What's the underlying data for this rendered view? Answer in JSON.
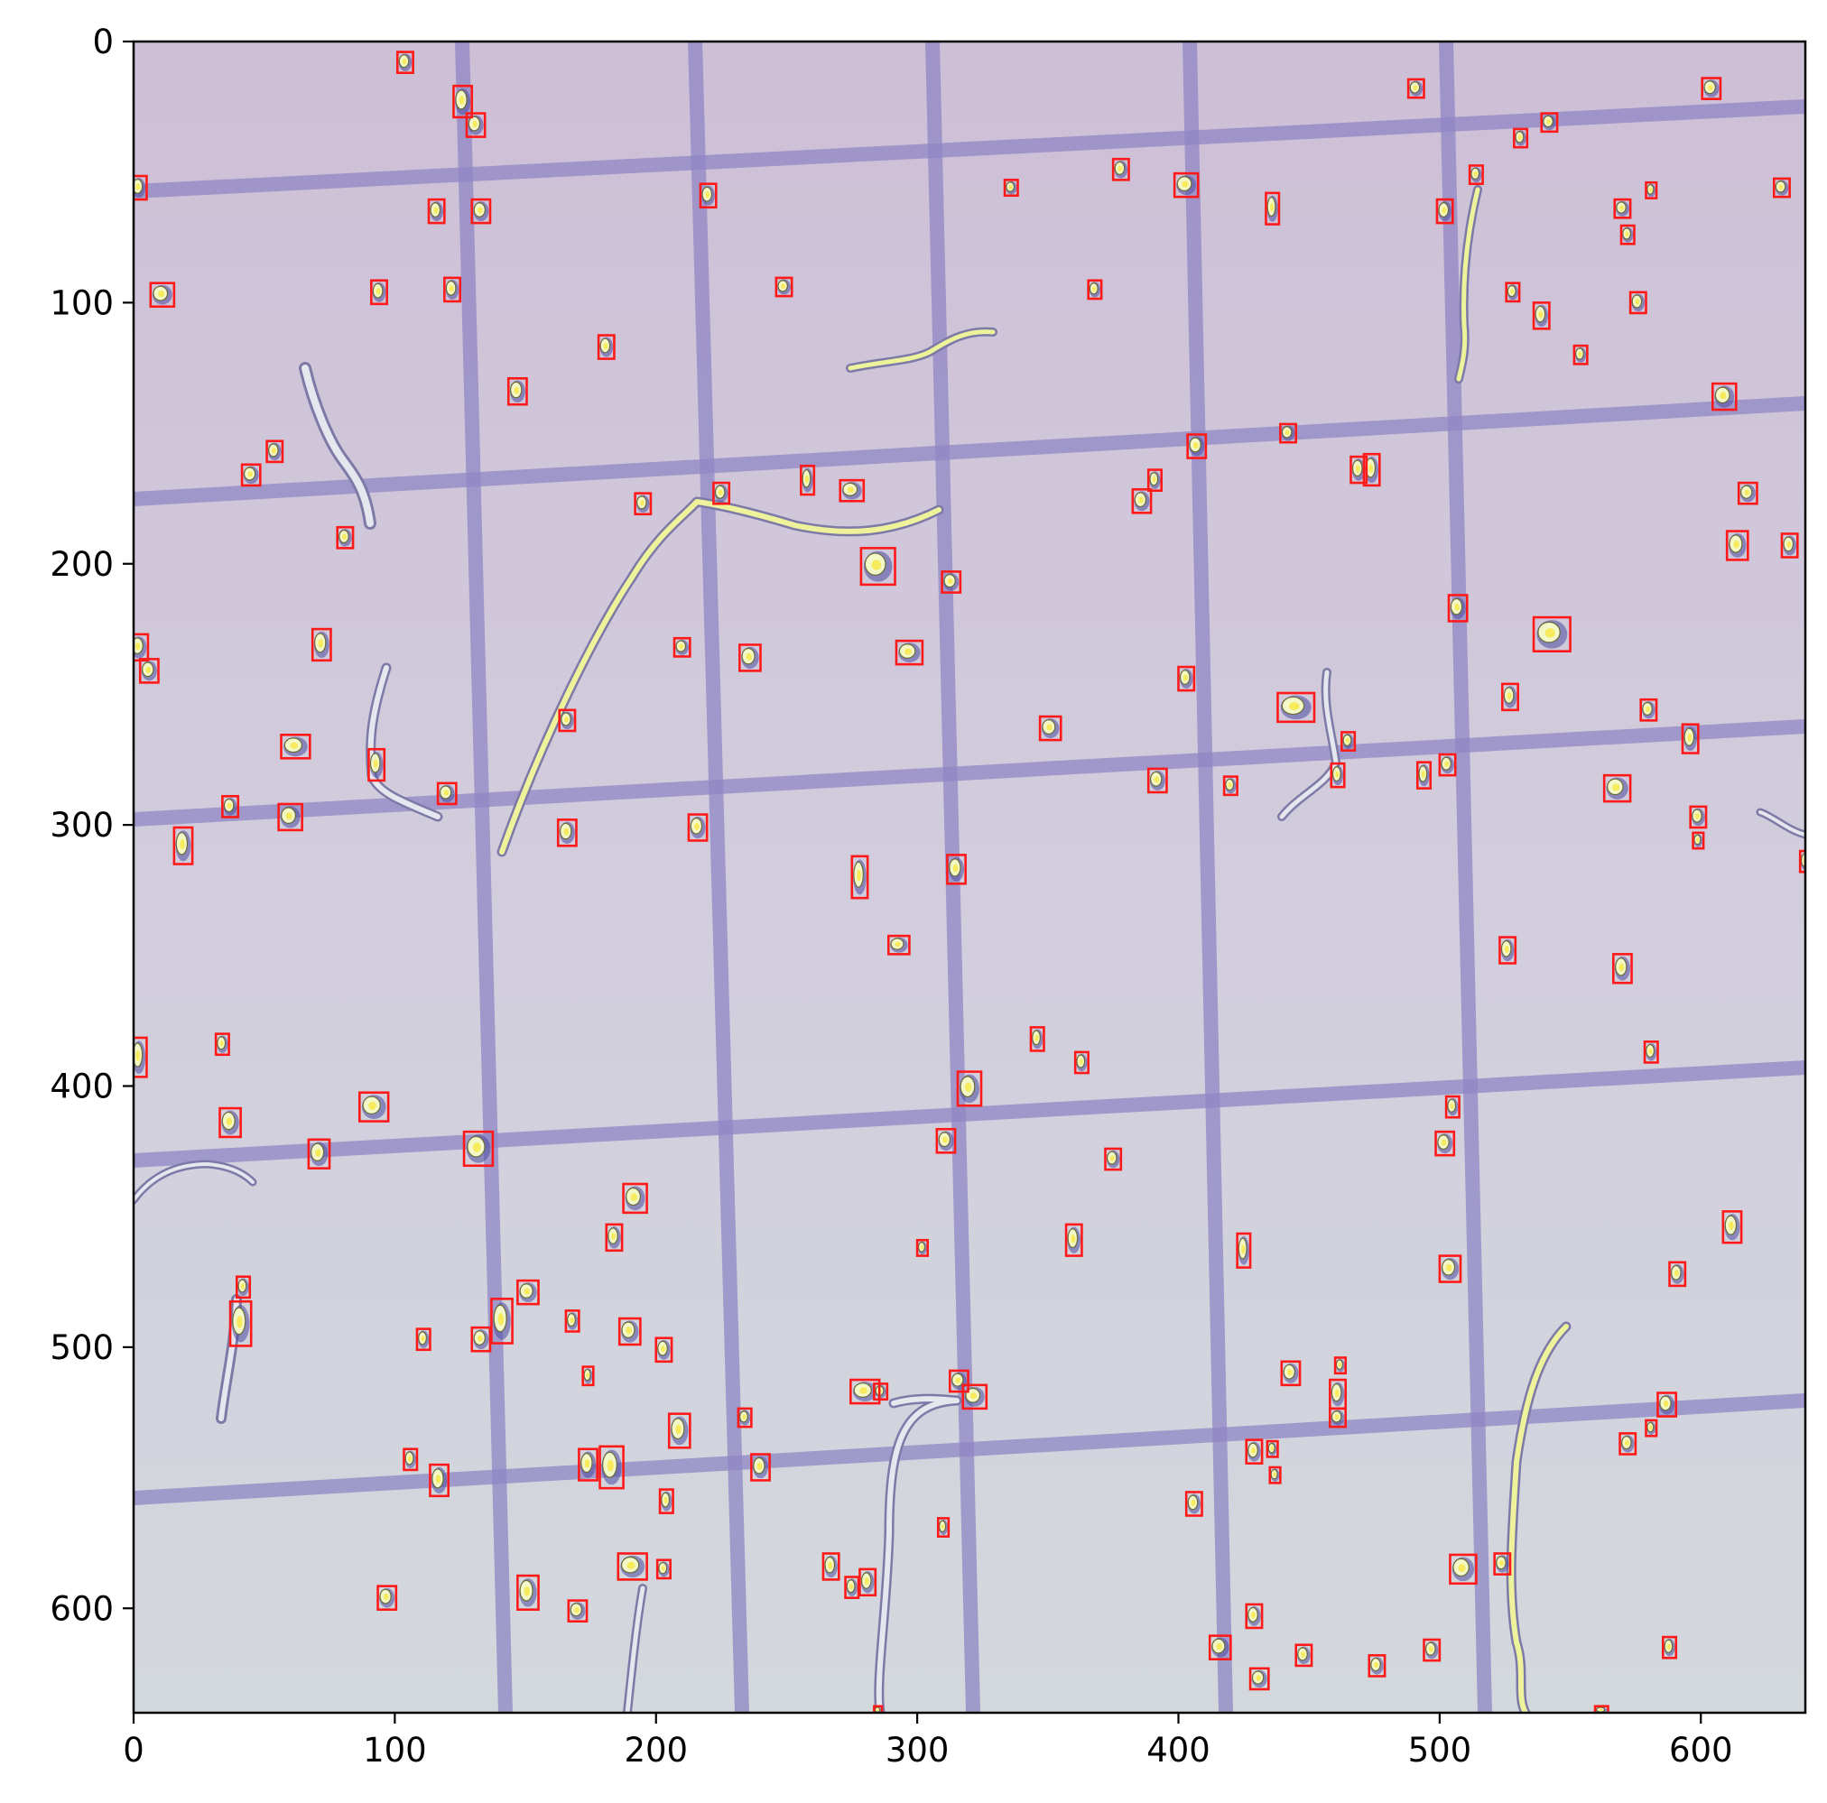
{
  "plot": {
    "xlim": [
      0,
      640
    ],
    "ylim": [
      640,
      0
    ],
    "x_ticks": [
      "0",
      "100",
      "200",
      "300",
      "400",
      "500",
      "600"
    ],
    "y_ticks": [
      "0",
      "100",
      "200",
      "300",
      "400",
      "500",
      "600"
    ],
    "y_inverted": true
  },
  "colors": {
    "background_top": "#cdbfd6",
    "background_bottom": "#d4d8de",
    "grid_line": "#8f86c4",
    "detection_box": "#ff1a1a",
    "filament": "#e8ee9a"
  },
  "detections": [
    [
      104,
      8,
      6,
      8
    ],
    [
      126,
      23,
      7,
      12
    ],
    [
      131,
      32,
      7,
      9
    ],
    [
      2,
      56,
      6,
      9
    ],
    [
      116,
      65,
      6,
      9
    ],
    [
      133,
      65,
      7,
      9
    ],
    [
      11,
      97,
      9,
      9
    ],
    [
      94,
      96,
      6,
      9
    ],
    [
      122,
      95,
      6,
      9
    ],
    [
      181,
      117,
      6,
      9
    ],
    [
      147,
      134,
      7,
      10
    ],
    [
      220,
      59,
      6,
      9
    ],
    [
      249,
      94,
      6,
      7
    ],
    [
      54,
      157,
      6,
      8
    ],
    [
      45,
      166,
      7,
      8
    ],
    [
      81,
      190,
      6,
      8
    ],
    [
      195,
      177,
      6,
      8
    ],
    [
      225,
      173,
      6,
      8
    ],
    [
      258,
      168,
      5,
      11
    ],
    [
      275,
      172,
      9,
      8
    ],
    [
      285,
      201,
      13,
      14
    ],
    [
      313,
      207,
      7,
      8
    ],
    [
      2,
      232,
      7,
      10
    ],
    [
      6,
      241,
      7,
      9
    ],
    [
      72,
      231,
      7,
      12
    ],
    [
      62,
      270,
      11,
      9
    ],
    [
      93,
      277,
      6,
      12
    ],
    [
      120,
      288,
      7,
      8
    ],
    [
      60,
      297,
      9,
      10
    ],
    [
      37,
      293,
      6,
      8
    ],
    [
      19,
      308,
      7,
      14
    ],
    [
      166,
      260,
      6,
      8
    ],
    [
      210,
      232,
      6,
      7
    ],
    [
      236,
      236,
      8,
      10
    ],
    [
      166,
      303,
      7,
      10
    ],
    [
      216,
      301,
      7,
      10
    ],
    [
      297,
      234,
      10,
      9
    ],
    [
      336,
      56,
      5,
      6
    ],
    [
      378,
      49,
      6,
      8
    ],
    [
      403,
      55,
      9,
      9
    ],
    [
      436,
      64,
      5,
      12
    ],
    [
      368,
      95,
      5,
      7
    ],
    [
      491,
      18,
      6,
      7
    ],
    [
      502,
      65,
      6,
      9
    ],
    [
      514,
      51,
      5,
      7
    ],
    [
      531,
      37,
      5,
      7
    ],
    [
      542,
      31,
      6,
      7
    ],
    [
      604,
      18,
      7,
      8
    ],
    [
      631,
      56,
      6,
      7
    ],
    [
      570,
      64,
      6,
      7
    ],
    [
      572,
      74,
      5,
      7
    ],
    [
      581,
      57,
      4,
      6
    ],
    [
      528,
      96,
      5,
      7
    ],
    [
      539,
      105,
      6,
      10
    ],
    [
      554,
      120,
      5,
      7
    ],
    [
      576,
      100,
      6,
      8
    ],
    [
      609,
      136,
      9,
      10
    ],
    [
      407,
      155,
      7,
      9
    ],
    [
      442,
      150,
      6,
      7
    ],
    [
      391,
      168,
      5,
      8
    ],
    [
      386,
      176,
      7,
      9
    ],
    [
      469,
      164,
      6,
      10
    ],
    [
      474,
      164,
      6,
      12
    ],
    [
      618,
      173,
      7,
      8
    ],
    [
      614,
      193,
      8,
      11
    ],
    [
      634,
      193,
      6,
      9
    ],
    [
      507,
      217,
      7,
      10
    ],
    [
      543,
      227,
      14,
      13
    ],
    [
      403,
      244,
      6,
      9
    ],
    [
      445,
      255,
      14,
      11
    ],
    [
      527,
      251,
      6,
      10
    ],
    [
      580,
      256,
      6,
      8
    ],
    [
      596,
      267,
      6,
      11
    ],
    [
      351,
      263,
      8,
      9
    ],
    [
      392,
      283,
      7,
      9
    ],
    [
      420,
      285,
      5,
      7
    ],
    [
      461,
      281,
      5,
      9
    ],
    [
      465,
      268,
      5,
      7
    ],
    [
      494,
      281,
      5,
      10
    ],
    [
      503,
      277,
      6,
      8
    ],
    [
      568,
      286,
      10,
      10
    ],
    [
      599,
      297,
      6,
      8
    ],
    [
      599,
      306,
      4,
      6
    ],
    [
      640,
      314,
      4,
      8
    ],
    [
      278,
      320,
      6,
      16
    ],
    [
      315,
      317,
      7,
      11
    ],
    [
      293,
      346,
      8,
      7
    ],
    [
      526,
      348,
      6,
      10
    ],
    [
      570,
      355,
      7,
      11
    ],
    [
      2,
      389,
      6,
      15
    ],
    [
      34,
      384,
      5,
      8
    ],
    [
      37,
      414,
      8,
      11
    ],
    [
      92,
      408,
      11,
      11
    ],
    [
      71,
      426,
      8,
      11
    ],
    [
      132,
      424,
      11,
      13
    ],
    [
      346,
      382,
      5,
      9
    ],
    [
      363,
      391,
      5,
      8
    ],
    [
      581,
      387,
      5,
      8
    ],
    [
      320,
      401,
      9,
      13
    ],
    [
      311,
      421,
      7,
      9
    ],
    [
      375,
      428,
      6,
      8
    ],
    [
      505,
      408,
      5,
      8
    ],
    [
      502,
      422,
      7,
      9
    ],
    [
      612,
      454,
      7,
      12
    ],
    [
      360,
      459,
      6,
      12
    ],
    [
      425,
      463,
      5,
      13
    ],
    [
      302,
      462,
      4,
      6
    ],
    [
      192,
      443,
      9,
      11
    ],
    [
      184,
      458,
      6,
      10
    ],
    [
      42,
      477,
      5,
      8
    ],
    [
      41,
      491,
      8,
      17
    ],
    [
      141,
      490,
      8,
      17
    ],
    [
      151,
      479,
      8,
      9
    ],
    [
      111,
      497,
      5,
      8
    ],
    [
      133,
      497,
      7,
      9
    ],
    [
      168,
      490,
      5,
      8
    ],
    [
      174,
      511,
      4,
      7
    ],
    [
      190,
      494,
      8,
      10
    ],
    [
      203,
      501,
      6,
      9
    ],
    [
      504,
      470,
      8,
      10
    ],
    [
      591,
      472,
      6,
      9
    ],
    [
      234,
      527,
      5,
      7
    ],
    [
      280,
      517,
      11,
      9
    ],
    [
      286,
      517,
      5,
      6
    ],
    [
      316,
      513,
      7,
      8
    ],
    [
      322,
      519,
      9,
      9
    ],
    [
      209,
      532,
      8,
      13
    ],
    [
      106,
      543,
      5,
      8
    ],
    [
      117,
      551,
      7,
      12
    ],
    [
      174,
      545,
      7,
      12
    ],
    [
      183,
      546,
      9,
      16
    ],
    [
      240,
      546,
      7,
      10
    ],
    [
      443,
      510,
      7,
      9
    ],
    [
      462,
      507,
      4,
      6
    ],
    [
      461,
      518,
      6,
      11
    ],
    [
      461,
      527,
      6,
      7
    ],
    [
      429,
      540,
      6,
      9
    ],
    [
      436,
      539,
      4,
      6
    ],
    [
      437,
      549,
      4,
      6
    ],
    [
      572,
      537,
      6,
      8
    ],
    [
      581,
      531,
      4,
      6
    ],
    [
      587,
      522,
      7,
      9
    ],
    [
      406,
      560,
      6,
      9
    ],
    [
      204,
      559,
      5,
      9
    ],
    [
      310,
      569,
      4,
      7
    ],
    [
      191,
      584,
      11,
      10
    ],
    [
      203,
      585,
      5,
      7
    ],
    [
      267,
      584,
      6,
      10
    ],
    [
      275,
      592,
      5,
      8
    ],
    [
      281,
      590,
      6,
      10
    ],
    [
      97,
      596,
      7,
      9
    ],
    [
      151,
      594,
      8,
      13
    ],
    [
      170,
      601,
      7,
      8
    ],
    [
      509,
      585,
      10,
      11
    ],
    [
      524,
      583,
      6,
      8
    ],
    [
      416,
      615,
      8,
      9
    ],
    [
      429,
      603,
      6,
      9
    ],
    [
      431,
      627,
      7,
      8
    ],
    [
      448,
      618,
      6,
      8
    ],
    [
      476,
      622,
      6,
      8
    ],
    [
      497,
      616,
      6,
      8
    ],
    [
      588,
      615,
      5,
      8
    ],
    [
      285,
      639,
      3,
      3
    ],
    [
      562,
      639,
      5,
      3
    ]
  ]
}
